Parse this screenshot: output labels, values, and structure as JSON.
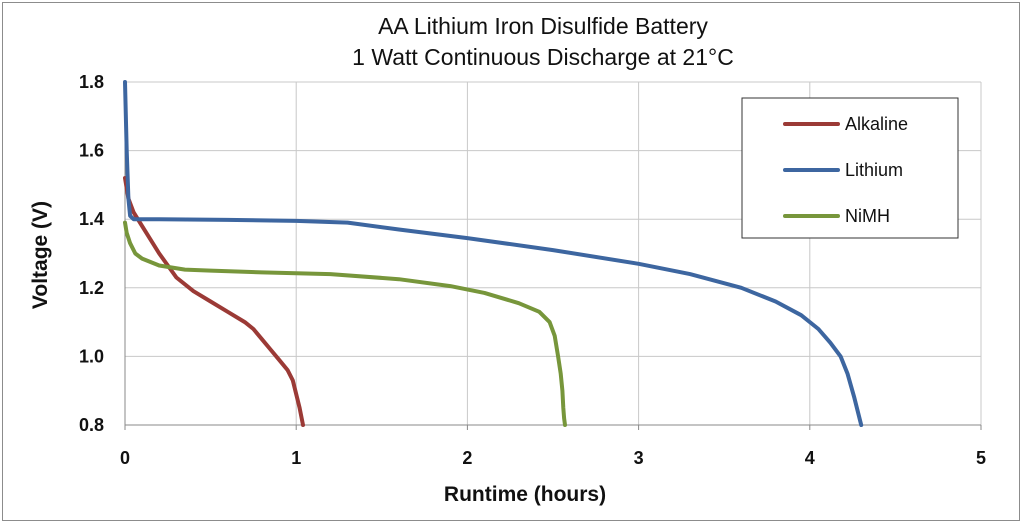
{
  "chart_data": {
    "type": "line",
    "title": "AA Lithium Iron Disulfide Battery",
    "subtitle": "1 Watt Continuous Discharge at 21°C",
    "xlabel": "Runtime (hours)",
    "ylabel": "Voltage (V)",
    "xlim": [
      0,
      5
    ],
    "ylim": [
      0.8,
      1.8
    ],
    "xticks": [
      0,
      1,
      2,
      3,
      4,
      5
    ],
    "yticks": [
      0.8,
      1.0,
      1.2,
      1.4,
      1.6,
      1.8
    ],
    "xtick_labels": [
      "0",
      "1",
      "2",
      "3",
      "4",
      "5"
    ],
    "ytick_labels": [
      "0.8",
      "1.0",
      "1.2",
      "1.4",
      "1.6",
      "1.8"
    ],
    "grid": true,
    "legend_position": "top-right",
    "series": [
      {
        "name": "Alkaline",
        "color": "#9b3a36",
        "x": [
          0.0,
          0.02,
          0.05,
          0.1,
          0.2,
          0.3,
          0.4,
          0.5,
          0.6,
          0.7,
          0.75,
          0.8,
          0.85,
          0.9,
          0.95,
          0.98,
          1.0,
          1.02,
          1.04
        ],
        "y": [
          1.52,
          1.46,
          1.42,
          1.38,
          1.3,
          1.23,
          1.19,
          1.16,
          1.13,
          1.1,
          1.08,
          1.05,
          1.02,
          0.99,
          0.96,
          0.93,
          0.89,
          0.85,
          0.8
        ]
      },
      {
        "name": "Lithium",
        "color": "#3d66a0",
        "x": [
          0.0,
          0.01,
          0.02,
          0.03,
          0.05,
          0.2,
          0.6,
          1.0,
          1.3,
          1.6,
          2.0,
          2.5,
          3.0,
          3.3,
          3.6,
          3.8,
          3.95,
          4.05,
          4.12,
          4.18,
          4.22,
          4.26,
          4.3
        ],
        "y": [
          1.8,
          1.6,
          1.46,
          1.41,
          1.4,
          1.4,
          1.398,
          1.395,
          1.39,
          1.37,
          1.345,
          1.31,
          1.27,
          1.24,
          1.2,
          1.16,
          1.12,
          1.08,
          1.04,
          1.0,
          0.95,
          0.88,
          0.8
        ]
      },
      {
        "name": "NiMH",
        "color": "#77963b",
        "x": [
          0.0,
          0.01,
          0.03,
          0.06,
          0.1,
          0.2,
          0.35,
          0.5,
          0.8,
          1.2,
          1.6,
          1.9,
          2.1,
          2.3,
          2.42,
          2.48,
          2.51,
          2.53,
          2.545,
          2.555,
          2.56,
          2.565,
          2.57
        ],
        "y": [
          1.39,
          1.36,
          1.33,
          1.3,
          1.285,
          1.265,
          1.253,
          1.25,
          1.245,
          1.24,
          1.225,
          1.205,
          1.185,
          1.155,
          1.13,
          1.1,
          1.06,
          1.0,
          0.95,
          0.9,
          0.85,
          0.82,
          0.8
        ]
      }
    ]
  }
}
